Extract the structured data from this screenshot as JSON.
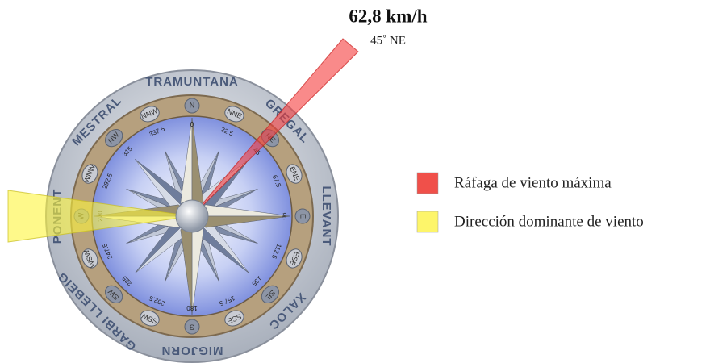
{
  "gust": {
    "speed": "62,8 km/h",
    "direction": "45˚ NE"
  },
  "legend": [
    {
      "label": "Ráfaga de viento máxima",
      "color": "#f0504a"
    },
    {
      "label": "Dirección dominante de viento",
      "color": "#fdf56a"
    }
  ],
  "winds": [
    {
      "name": "TRAMUNTANA",
      "degrees": 0
    },
    {
      "name": "GREGAL",
      "degrees": 45
    },
    {
      "name": "LLEVANT",
      "degrees": 90
    },
    {
      "name": "XALOC",
      "degrees": 135
    },
    {
      "name": "MIGJORN",
      "degrees": 180
    },
    {
      "name": "GARBI LLEBEIG",
      "degrees": 225
    },
    {
      "name": "PONENT",
      "degrees": 270
    },
    {
      "name": "MESTRAL",
      "degrees": 315
    }
  ],
  "points": [
    {
      "label": "N",
      "degrees": 0
    },
    {
      "label": "NNE",
      "degrees": 22.5
    },
    {
      "label": "NE",
      "degrees": 45
    },
    {
      "label": "ENE",
      "degrees": 67.5
    },
    {
      "label": "E",
      "degrees": 90
    },
    {
      "label": "ESE",
      "degrees": 112.5
    },
    {
      "label": "SE",
      "degrees": 135
    },
    {
      "label": "SSE",
      "degrees": 157.5
    },
    {
      "label": "S",
      "degrees": 180
    },
    {
      "label": "SSW",
      "degrees": 202.5
    },
    {
      "label": "SW",
      "degrees": 225
    },
    {
      "label": "WSW",
      "degrees": 247.5
    },
    {
      "label": "W",
      "degrees": 270
    },
    {
      "label": "WNW",
      "degrees": 292.5
    },
    {
      "label": "NW",
      "degrees": 315
    },
    {
      "label": "NNW",
      "degrees": 337.5
    }
  ]
}
